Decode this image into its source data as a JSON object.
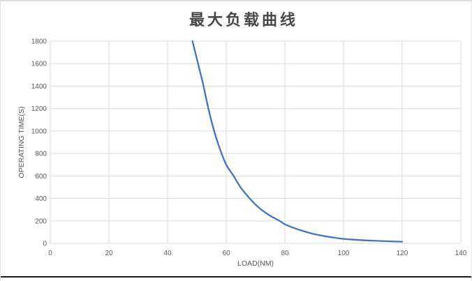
{
  "chart_data": {
    "type": "line",
    "title": "最大负载曲线",
    "xlabel": "LOAD(NM)",
    "ylabel": "OPERATING TIME(S)",
    "xlim": [
      0,
      140
    ],
    "ylim": [
      0,
      1800
    ],
    "xticks": [
      0,
      20,
      40,
      60,
      80,
      100,
      120,
      140
    ],
    "yticks": [
      0,
      200,
      400,
      600,
      800,
      1000,
      1200,
      1400,
      1600,
      1800
    ],
    "grid": "both",
    "legend": "none",
    "series": [
      {
        "name": "最大负载曲线",
        "color": "#4472C4",
        "points": [
          [
            48.5,
            1800
          ],
          [
            50,
            1640
          ],
          [
            52,
            1430
          ],
          [
            54,
            1190
          ],
          [
            56,
            990
          ],
          [
            58,
            830
          ],
          [
            60,
            700
          ],
          [
            62.5,
            600
          ],
          [
            65,
            495
          ],
          [
            68,
            400
          ],
          [
            70,
            345
          ],
          [
            72,
            300
          ],
          [
            75,
            245
          ],
          [
            78,
            203
          ],
          [
            80,
            170
          ],
          [
            83,
            138
          ],
          [
            86,
            112
          ],
          [
            90,
            82
          ],
          [
            93,
            67
          ],
          [
            96,
            54
          ],
          [
            100,
            40
          ],
          [
            104,
            32
          ],
          [
            108,
            26
          ],
          [
            112,
            22
          ],
          [
            116,
            18
          ],
          [
            120,
            15
          ]
        ]
      }
    ]
  },
  "colors": {
    "line": "#4472C4",
    "gridline": "#D9D9D9",
    "axis_text": "#595959",
    "title_text": "#474747",
    "frame_border": "#DCDCDC",
    "bottom_rule": "#1A1A1A",
    "background": "#FFFFFF"
  }
}
